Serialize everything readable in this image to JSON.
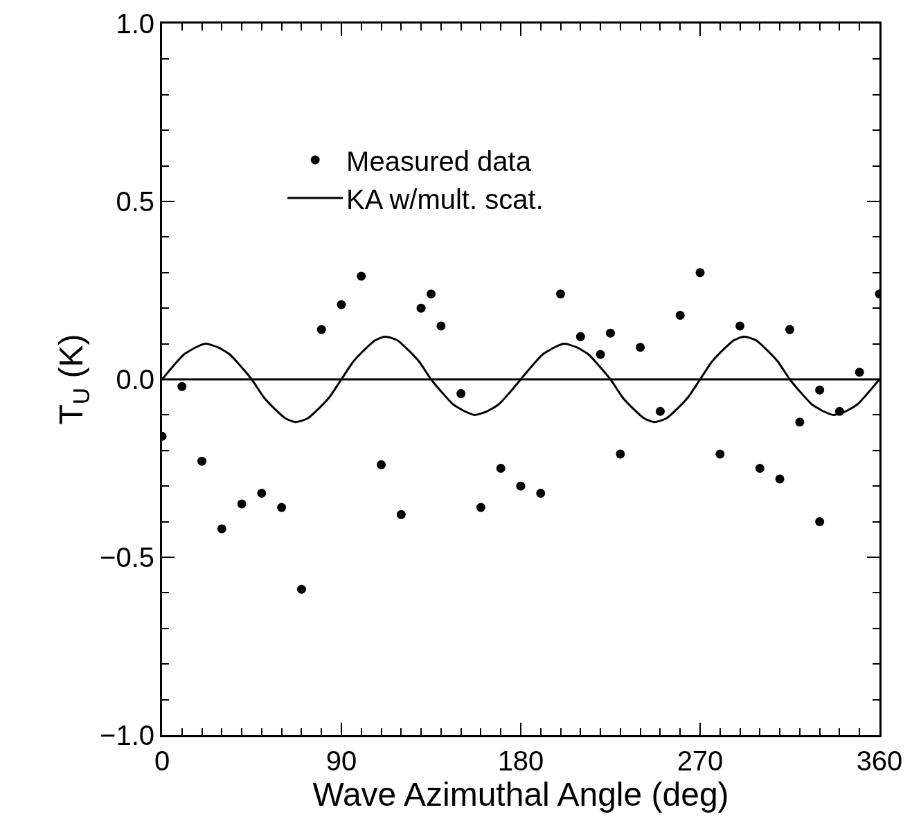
{
  "chart_data": {
    "type": "scatter",
    "xlabel": "Wave Azimuthal Angle (deg)",
    "ylabel": "T$_{U}$ (K)",
    "xlim": [
      0,
      360
    ],
    "ylim": [
      -1.0,
      1.0
    ],
    "xticks": [
      0,
      90,
      180,
      270,
      360
    ],
    "yticks": [
      {
        "value": -1.0,
        "label": "−1.0"
      },
      {
        "value": -0.5,
        "label": "−0.5"
      },
      {
        "value": 0.0,
        "label": "0.0"
      },
      {
        "value": 0.5,
        "label": "0.5"
      },
      {
        "value": 1.0,
        "label": "1.0"
      }
    ],
    "grid": false,
    "legend": "top",
    "ref_lines": [
      {
        "axis": "y",
        "value": 0,
        "color": "#000000",
        "line_style": "solid"
      }
    ],
    "series": [
      {
        "name": "Measured data",
        "marker": "circle",
        "color": "#000000",
        "x": [
          0,
          10,
          20,
          30,
          40,
          50,
          60,
          70,
          80,
          90,
          100,
          110,
          120,
          130,
          135,
          140,
          150,
          160,
          170,
          180,
          190,
          200,
          210,
          220,
          225,
          230,
          240,
          250,
          260,
          270,
          280,
          290,
          300,
          310,
          315,
          320,
          330,
          330,
          340,
          350,
          360
        ],
        "values": [
          -0.16,
          -0.02,
          -0.23,
          -0.42,
          -0.35,
          -0.32,
          -0.36,
          -0.59,
          0.14,
          0.21,
          0.29,
          -0.24,
          -0.38,
          0.2,
          0.24,
          0.15,
          -0.04,
          -0.36,
          -0.25,
          -0.3,
          -0.32,
          0.24,
          0.12,
          0.07,
          0.13,
          -0.21,
          0.09,
          -0.09,
          0.18,
          0.3,
          -0.21,
          0.15,
          -0.25,
          -0.28,
          0.14,
          -0.12,
          -0.03,
          -0.4,
          -0.09,
          0.02,
          0.24
        ]
      },
      {
        "name": "KA w/mult. scat.",
        "type": "line",
        "marker": "none",
        "line_style": "solid",
        "color": "#000000",
        "x": [
          0,
          6,
          11,
          17,
          22,
          28,
          34,
          39,
          45,
          51,
          56,
          62,
          67,
          73,
          79,
          84,
          90,
          96,
          101,
          107,
          112,
          118,
          124,
          129,
          135,
          141,
          146,
          152,
          157,
          163,
          169,
          174,
          180,
          186,
          191,
          197,
          202,
          208,
          214,
          219,
          225,
          231,
          236,
          242,
          247,
          253,
          259,
          264,
          270,
          276,
          281,
          287,
          292,
          298,
          304,
          309,
          315,
          321,
          326,
          332,
          337,
          343,
          349,
          354,
          360
        ],
        "values": [
          0.0,
          0.04,
          0.07,
          0.09,
          0.1,
          0.09,
          0.07,
          0.04,
          0.0,
          -0.05,
          -0.08,
          -0.11,
          -0.12,
          -0.11,
          -0.08,
          -0.05,
          0.0,
          0.05,
          0.08,
          0.11,
          0.12,
          0.11,
          0.08,
          0.05,
          0.0,
          -0.04,
          -0.07,
          -0.09,
          -0.1,
          -0.09,
          -0.07,
          -0.04,
          0.0,
          0.04,
          0.07,
          0.09,
          0.1,
          0.09,
          0.07,
          0.04,
          0.0,
          -0.05,
          -0.08,
          -0.11,
          -0.12,
          -0.11,
          -0.08,
          -0.05,
          0.0,
          0.05,
          0.08,
          0.11,
          0.12,
          0.11,
          0.08,
          0.05,
          0.0,
          -0.04,
          -0.07,
          -0.09,
          -0.1,
          -0.09,
          -0.07,
          -0.04,
          0.0
        ]
      }
    ]
  }
}
